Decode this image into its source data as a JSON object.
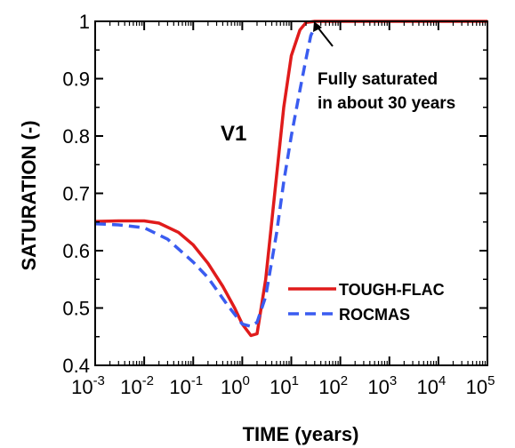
{
  "chart_data": {
    "type": "line",
    "xscale": "log",
    "xlim": [
      0.001,
      100000
    ],
    "ylim": [
      0.4,
      1.0
    ],
    "xlabel": "TIME (years)",
    "ylabel": "SATURATION (-)",
    "x_tick_exponents": [
      "-3",
      "-2",
      "-1",
      "0",
      "1",
      "2",
      "3",
      "4",
      "5"
    ],
    "y_ticks": [
      0.4,
      0.5,
      0.6,
      0.7,
      0.8,
      0.9,
      1.0
    ],
    "y_tick_labels": [
      "0.4",
      "0.5",
      "0.6",
      "0.7",
      "0.8",
      "0.9",
      "1"
    ],
    "grid": false,
    "legend": {
      "placement": "right-middle"
    },
    "panel_label": "V1",
    "annotation": {
      "lines": [
        "Fully saturated",
        "in about 30 years"
      ],
      "arrow_to": {
        "x": 20,
        "y": 0.995
      }
    },
    "series": [
      {
        "name": "TOUGH-FLAC",
        "color": "#e01b1b",
        "dash": "solid",
        "points": [
          [
            0.001,
            0.651
          ],
          [
            0.003,
            0.652
          ],
          [
            0.01,
            0.652
          ],
          [
            0.02,
            0.648
          ],
          [
            0.05,
            0.632
          ],
          [
            0.1,
            0.61
          ],
          [
            0.2,
            0.578
          ],
          [
            0.4,
            0.538
          ],
          [
            0.7,
            0.5
          ],
          [
            1.0,
            0.472
          ],
          [
            1.5,
            0.452
          ],
          [
            2.0,
            0.455
          ],
          [
            3.0,
            0.55
          ],
          [
            5.0,
            0.73
          ],
          [
            7.0,
            0.85
          ],
          [
            10.0,
            0.94
          ],
          [
            15.0,
            0.985
          ],
          [
            20.0,
            0.998
          ],
          [
            30.0,
            1.0
          ],
          [
            100000,
            1.0
          ]
        ]
      },
      {
        "name": "ROCMAS",
        "color": "#3a5cf0",
        "dash": "dashed",
        "points": [
          [
            0.001,
            0.647
          ],
          [
            0.003,
            0.645
          ],
          [
            0.01,
            0.64
          ],
          [
            0.03,
            0.62
          ],
          [
            0.1,
            0.58
          ],
          [
            0.2,
            0.553
          ],
          [
            0.5,
            0.505
          ],
          [
            1.0,
            0.472
          ],
          [
            1.5,
            0.468
          ],
          [
            2.0,
            0.475
          ],
          [
            3.0,
            0.52
          ],
          [
            5.0,
            0.63
          ],
          [
            7.0,
            0.72
          ],
          [
            10.0,
            0.8
          ],
          [
            15.0,
            0.88
          ],
          [
            20.0,
            0.935
          ],
          [
            25.0,
            0.975
          ],
          [
            30.0,
            0.99
          ]
        ]
      }
    ]
  }
}
